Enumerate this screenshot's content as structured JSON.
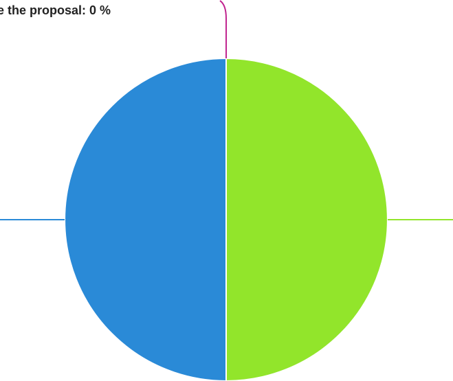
{
  "chart_data": {
    "type": "pie",
    "categories": [
      "Blue segment",
      "Green segment",
      "Magenta segment"
    ],
    "values": [
      50,
      50,
      0
    ],
    "colors": [
      "#2a8ad7",
      "#92e52b",
      "#c0248f"
    ],
    "annotations": [
      "e the proposal: 0 %"
    ],
    "legend": "none"
  }
}
